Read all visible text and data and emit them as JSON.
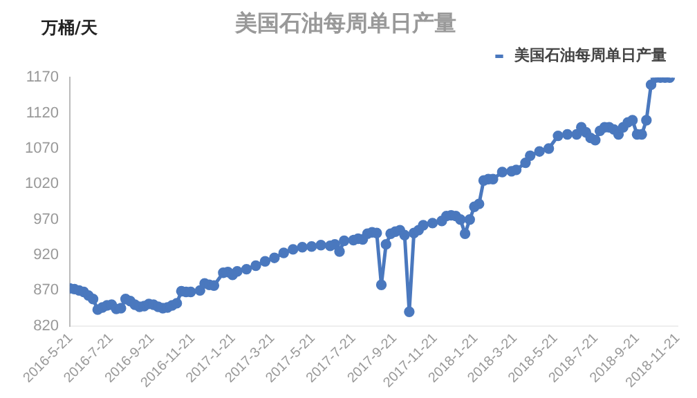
{
  "chart_data": {
    "type": "line",
    "title": "美国石油每周单日产量",
    "ylabel": "万桶/天",
    "legend": "top right",
    "marker": "circle",
    "line_style": "solid",
    "grid": false,
    "xlim": [
      "2016-05-20",
      "2018-11-21"
    ],
    "xticks": [
      {
        "value": "2016-05-21",
        "label": "2016-5-21"
      },
      {
        "value": "2016-07-21",
        "label": "2016-7-21"
      },
      {
        "value": "2016-09-21",
        "label": "2016-9-21"
      },
      {
        "value": "2016-11-21",
        "label": "2016-11-21"
      },
      {
        "value": "2017-01-21",
        "label": "2017-1-21"
      },
      {
        "value": "2017-03-21",
        "label": "2017-3-21"
      },
      {
        "value": "2017-05-21",
        "label": "2017-5-21"
      },
      {
        "value": "2017-07-21",
        "label": "2017-7-21"
      },
      {
        "value": "2017-09-21",
        "label": "2017-9-21"
      },
      {
        "value": "2017-11-21",
        "label": "2017-11-21"
      },
      {
        "value": "2018-01-21",
        "label": "2018-1-21"
      },
      {
        "value": "2018-03-21",
        "label": "2018-3-21"
      },
      {
        "value": "2018-05-21",
        "label": "2018-5-21"
      },
      {
        "value": "2018-07-21",
        "label": "2018-7-21"
      },
      {
        "value": "2018-09-21",
        "label": "2018-9-21"
      },
      {
        "value": "2018-11-21",
        "label": "2018-11-21"
      }
    ],
    "ylim": [
      820,
      1170
    ],
    "yticks": [
      820,
      870,
      920,
      970,
      1020,
      1070,
      1120,
      1170
    ],
    "series": [
      {
        "name": "美国石油每周单日产量",
        "color": "#4a78be",
        "x": [
          "2016-05-20",
          "2016-05-27",
          "2016-06-03",
          "2016-06-10",
          "2016-06-17",
          "2016-06-24",
          "2016-07-01",
          "2016-07-08",
          "2016-07-15",
          "2016-07-22",
          "2016-07-29",
          "2016-08-05",
          "2016-08-12",
          "2016-08-19",
          "2016-08-26",
          "2016-09-02",
          "2016-09-09",
          "2016-09-16",
          "2016-09-23",
          "2016-09-30",
          "2016-10-07",
          "2016-10-14",
          "2016-10-21",
          "2016-10-28",
          "2016-11-04",
          "2016-11-11",
          "2016-11-18",
          "2016-12-02",
          "2016-12-09",
          "2016-12-16",
          "2016-12-23",
          "2017-01-06",
          "2017-01-13",
          "2017-01-20",
          "2017-01-27",
          "2017-02-10",
          "2017-02-24",
          "2017-03-10",
          "2017-03-24",
          "2017-04-07",
          "2017-04-21",
          "2017-05-05",
          "2017-05-19",
          "2017-06-02",
          "2017-06-16",
          "2017-06-23",
          "2017-06-30",
          "2017-07-07",
          "2017-07-21",
          "2017-07-28",
          "2017-08-04",
          "2017-08-11",
          "2017-08-18",
          "2017-08-25",
          "2017-09-01",
          "2017-09-08",
          "2017-09-15",
          "2017-09-22",
          "2017-09-29",
          "2017-10-06",
          "2017-10-13",
          "2017-10-20",
          "2017-10-27",
          "2017-11-03",
          "2017-11-17",
          "2017-12-01",
          "2017-12-08",
          "2017-12-15",
          "2017-12-22",
          "2017-12-29",
          "2018-01-05",
          "2018-01-12",
          "2018-01-19",
          "2018-01-26",
          "2018-02-02",
          "2018-02-09",
          "2018-02-16",
          "2018-03-02",
          "2018-03-16",
          "2018-03-23",
          "2018-04-06",
          "2018-04-13",
          "2018-04-27",
          "2018-05-11",
          "2018-05-25",
          "2018-06-08",
          "2018-06-22",
          "2018-06-29",
          "2018-07-06",
          "2018-07-13",
          "2018-07-20",
          "2018-07-27",
          "2018-08-03",
          "2018-08-10",
          "2018-08-17",
          "2018-08-24",
          "2018-08-31",
          "2018-09-07",
          "2018-09-14",
          "2018-09-21",
          "2018-09-28",
          "2018-10-05",
          "2018-10-12",
          "2018-10-19",
          "2018-10-26",
          "2018-11-02",
          "2018-11-09"
        ],
        "values": [
          873,
          872,
          870,
          868,
          863,
          858,
          843,
          846,
          849,
          850,
          844,
          845,
          858,
          855,
          850,
          847,
          848,
          851,
          850,
          847,
          845,
          846,
          849,
          852,
          869,
          868,
          868,
          870,
          880,
          878,
          877,
          895,
          896,
          892,
          897,
          900,
          905,
          911,
          916,
          923,
          928,
          931,
          932,
          934,
          933,
          935,
          925,
          940,
          941,
          943,
          942,
          950,
          952,
          951,
          878,
          935,
          950,
          953,
          955,
          948,
          840,
          951,
          955,
          962,
          965,
          968,
          975,
          976,
          975,
          970,
          950,
          970,
          988,
          992,
          1025,
          1027,
          1027,
          1037,
          1038,
          1040,
          1050,
          1060,
          1066,
          1070,
          1088,
          1090,
          1090,
          1100,
          1093,
          1085,
          1082,
          1095,
          1100,
          1100,
          1097,
          1090,
          1100,
          1107,
          1110,
          1090,
          1090,
          1110,
          1160,
          1170,
          1170,
          1170,
          1170
        ]
      }
    ]
  }
}
